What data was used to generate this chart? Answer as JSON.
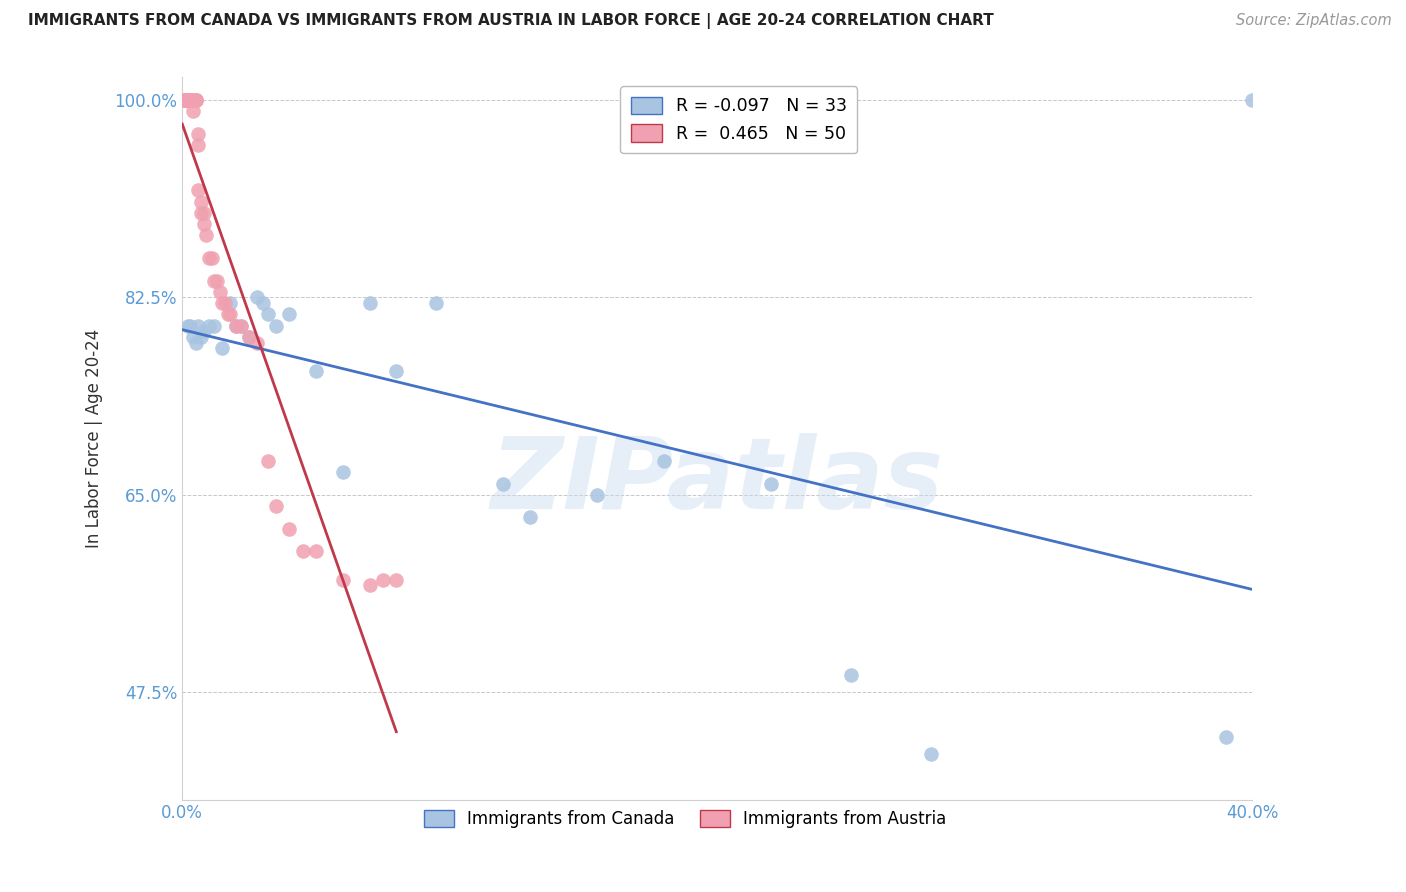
{
  "title": "IMMIGRANTS FROM CANADA VS IMMIGRANTS FROM AUSTRIA IN LABOR FORCE | AGE 20-24 CORRELATION CHART",
  "source": "Source: ZipAtlas.com",
  "ylabel": "In Labor Force | Age 20-24",
  "legend_canada": "Immigrants from Canada",
  "legend_austria": "Immigrants from Austria",
  "R_canada": -0.097,
  "N_canada": 33,
  "R_austria": 0.465,
  "N_austria": 50,
  "watermark": "ZIPatlas",
  "xmin": 0.0,
  "xmax": 0.4,
  "ymin": 0.38,
  "ymax": 1.02,
  "ytick_positions": [
    0.475,
    0.65,
    0.825,
    1.0
  ],
  "ytick_labels": [
    "47.5%",
    "65.0%",
    "82.5%",
    "100.0%"
  ],
  "xtick_positions": [
    0.0,
    0.05,
    0.1,
    0.15,
    0.2,
    0.25,
    0.3,
    0.35,
    0.4
  ],
  "xtick_labels": [
    "0.0%",
    "",
    "",
    "",
    "",
    "",
    "",
    "",
    "40.0%"
  ],
  "color_canada": "#a8c4e0",
  "color_austria": "#f0a0b0",
  "trendline_canada": "#4472c4",
  "trendline_austria": "#c0394b",
  "axis_color": "#5b9bd5",
  "grid_color": "#c8c8c8",
  "background_color": "#ffffff",
  "canada_x": [
    0.002,
    0.003,
    0.004,
    0.005,
    0.006,
    0.007,
    0.008,
    0.01,
    0.012,
    0.015,
    0.018,
    0.02,
    0.022,
    0.025,
    0.028,
    0.03,
    0.032,
    0.035,
    0.04,
    0.05,
    0.06,
    0.07,
    0.08,
    0.095,
    0.12,
    0.13,
    0.155,
    0.18,
    0.22,
    0.25,
    0.28,
    0.39,
    0.4
  ],
  "canada_y": [
    0.8,
    0.8,
    0.79,
    0.785,
    0.8,
    0.79,
    0.795,
    0.8,
    0.8,
    0.78,
    0.82,
    0.8,
    0.8,
    0.79,
    0.825,
    0.82,
    0.81,
    0.8,
    0.81,
    0.76,
    0.67,
    0.82,
    0.76,
    0.82,
    0.66,
    0.63,
    0.65,
    0.68,
    0.66,
    0.49,
    0.42,
    0.435,
    1.0
  ],
  "austria_x": [
    0.001,
    0.001,
    0.001,
    0.001,
    0.001,
    0.002,
    0.002,
    0.002,
    0.002,
    0.002,
    0.003,
    0.003,
    0.003,
    0.003,
    0.004,
    0.004,
    0.004,
    0.005,
    0.005,
    0.005,
    0.006,
    0.006,
    0.006,
    0.007,
    0.007,
    0.008,
    0.008,
    0.009,
    0.01,
    0.011,
    0.012,
    0.013,
    0.014,
    0.015,
    0.016,
    0.017,
    0.018,
    0.02,
    0.022,
    0.025,
    0.028,
    0.032,
    0.035,
    0.04,
    0.045,
    0.05,
    0.06,
    0.07,
    0.075,
    0.08
  ],
  "austria_y": [
    1.0,
    1.0,
    1.0,
    1.0,
    1.0,
    1.0,
    1.0,
    1.0,
    1.0,
    1.0,
    1.0,
    1.0,
    1.0,
    1.0,
    1.0,
    1.0,
    0.99,
    1.0,
    1.0,
    1.0,
    0.97,
    0.96,
    0.92,
    0.91,
    0.9,
    0.9,
    0.89,
    0.88,
    0.86,
    0.86,
    0.84,
    0.84,
    0.83,
    0.82,
    0.82,
    0.81,
    0.81,
    0.8,
    0.8,
    0.79,
    0.785,
    0.68,
    0.64,
    0.62,
    0.6,
    0.6,
    0.575,
    0.57,
    0.575,
    0.575
  ]
}
